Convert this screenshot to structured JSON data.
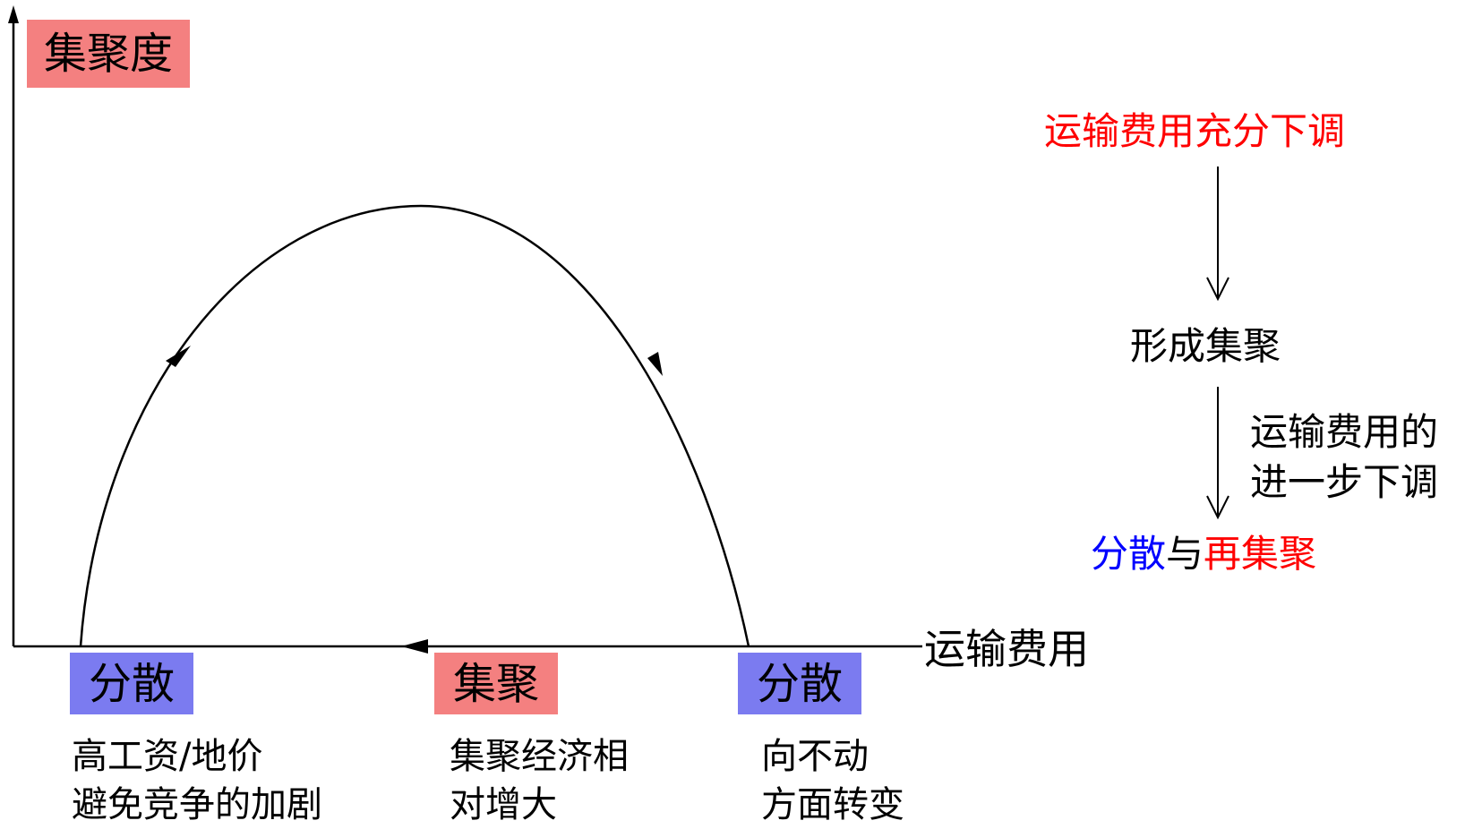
{
  "y_axis_label": "集聚度",
  "x_axis_label": "运输费用",
  "stages": [
    {
      "tag": "分散",
      "desc_line1": "高工资/地价",
      "desc_line2": "避免竞争的加剧"
    },
    {
      "tag": "集聚",
      "desc_line1": "集聚经济相",
      "desc_line2": "对增大"
    },
    {
      "tag": "分散",
      "desc_line1": "向不动",
      "desc_line2": "方面转变"
    }
  ],
  "flow": {
    "step1": "运输费用充分下调",
    "step2": "形成集聚",
    "note_line1": "运输费用的",
    "note_line2": "进一步下调",
    "step3_part1": "分散",
    "step3_part2": "与",
    "step3_part3": "再集聚"
  },
  "colors": {
    "aggregation_fill": "#f48080",
    "dispersion_fill": "#7b7bf0",
    "flow_red": "#ff0000",
    "flow_blue": "#0000ff"
  }
}
